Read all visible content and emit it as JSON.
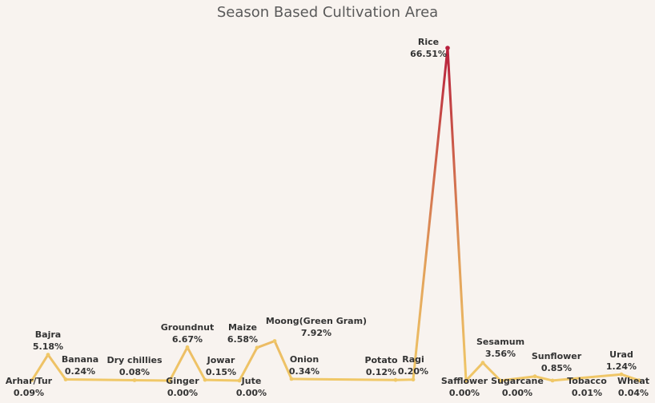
{
  "chart_data": {
    "type": "line",
    "title": "Season Based Cultivation Area",
    "categories": [
      "Arhar/Tur",
      "Bajra",
      "Banana",
      "Dry chillies",
      "Ginger",
      "Groundnut",
      "Jowar",
      "Jute",
      "Maize",
      "Moong(Green Gram)",
      "Onion",
      "Potato",
      "Ragi",
      "Rice",
      "Safflower",
      "Sesamum",
      "Sugarcane",
      "Sunflower",
      "Tobacco",
      "Urad",
      "Wheat"
    ],
    "x": [
      "Arhar/Tur",
      "Bajra",
      "",
      "Banana",
      "",
      "",
      "Dry chillies",
      "",
      "",
      "Ginger",
      "Groundnut",
      "Jowar",
      "",
      "Jute",
      "Maize",
      "Moong(Green Gram)",
      "Onion",
      "",
      "",
      "",
      "",
      "",
      "Potato",
      "Ragi",
      "",
      "Rice",
      "Safflower",
      "Sesamum",
      "Sugarcane",
      "",
      "Sunflower",
      "",
      "Tobacco",
      "",
      "Urad",
      "Wheat"
    ],
    "values": [
      0.09,
      5.18,
      0.24,
      0.08,
      0.0,
      6.67,
      0.15,
      0.0,
      6.58,
      7.92,
      0.34,
      0.12,
      0.2,
      66.51,
      0.0,
      3.56,
      0.0,
      0.85,
      0.01,
      1.24,
      0.04
    ],
    "value_labels": [
      "0.09%",
      "5.18%",
      "0.24%",
      "0.08%",
      "0.00%",
      "6.67%",
      "0.15%",
      "0.00%",
      "6.58%",
      "7.92%",
      "0.34%",
      "0.12%",
      "0.20%",
      "66.51%",
      "0.00%",
      "3.56%",
      "0.00%",
      "0.85%",
      "0.01%",
      "1.24%",
      "0.04%"
    ],
    "colors": {
      "low": "#f0c868",
      "high": "#b8203c",
      "background": "#f8f3ef"
    },
    "grid": false,
    "legend": "none"
  }
}
